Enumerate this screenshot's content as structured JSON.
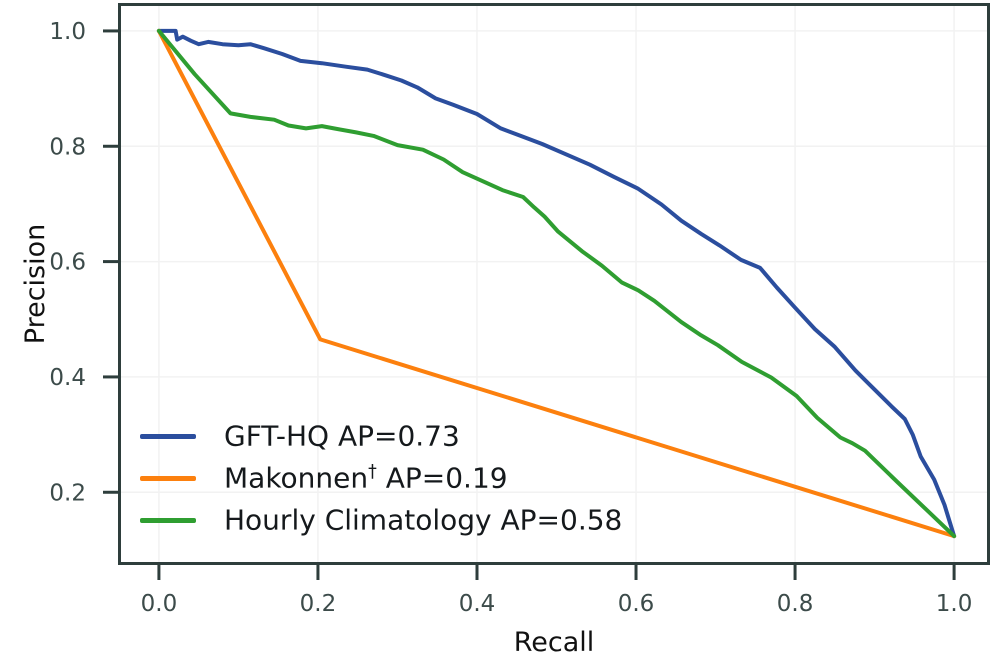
{
  "chart_data": {
    "type": "line",
    "title": "",
    "xlabel": "Recall",
    "ylabel": "Precision",
    "xlim": [
      -0.0502,
      1.0439
    ],
    "ylim": [
      0.0756,
      1.0467
    ],
    "x_ticks": [
      "0.0",
      "0.2",
      "0.4",
      "0.6",
      "0.8",
      "1.0"
    ],
    "y_ticks": [
      "0.2",
      "0.4",
      "0.6",
      "0.8",
      "1.0"
    ],
    "grid": true,
    "legend_position": "lower-left",
    "axis_color": "#2e3e3c",
    "tick_label_color": "#3c4b4a",
    "grid_color": "#f2f2f2",
    "axis_title_color": "#111111",
    "series": [
      {
        "name": "GFT-HQ",
        "ap": 0.73,
        "legend_main": "GFT-HQ",
        "legend_sup": "",
        "legend_rest": " AP=0.73",
        "full_label": "GFT-HQ AP=0.73",
        "color": "#2b4e9e",
        "points": [
          [
            0.0,
            1.0
          ],
          [
            0.021,
            1.0
          ],
          [
            0.023,
            0.985
          ],
          [
            0.03,
            0.99
          ],
          [
            0.04,
            0.983
          ],
          [
            0.05,
            0.977
          ],
          [
            0.062,
            0.981
          ],
          [
            0.08,
            0.977
          ],
          [
            0.1,
            0.975
          ],
          [
            0.115,
            0.977
          ],
          [
            0.132,
            0.97
          ],
          [
            0.155,
            0.96
          ],
          [
            0.178,
            0.948
          ],
          [
            0.205,
            0.944
          ],
          [
            0.235,
            0.938
          ],
          [
            0.262,
            0.933
          ],
          [
            0.285,
            0.923
          ],
          [
            0.305,
            0.914
          ],
          [
            0.325,
            0.902
          ],
          [
            0.348,
            0.883
          ],
          [
            0.37,
            0.872
          ],
          [
            0.4,
            0.856
          ],
          [
            0.43,
            0.831
          ],
          [
            0.455,
            0.818
          ],
          [
            0.482,
            0.804
          ],
          [
            0.512,
            0.786
          ],
          [
            0.542,
            0.768
          ],
          [
            0.572,
            0.747
          ],
          [
            0.602,
            0.727
          ],
          [
            0.632,
            0.699
          ],
          [
            0.657,
            0.671
          ],
          [
            0.682,
            0.648
          ],
          [
            0.705,
            0.628
          ],
          [
            0.732,
            0.603
          ],
          [
            0.756,
            0.589
          ],
          [
            0.777,
            0.555
          ],
          [
            0.8,
            0.52
          ],
          [
            0.825,
            0.483
          ],
          [
            0.85,
            0.452
          ],
          [
            0.876,
            0.411
          ],
          [
            0.9,
            0.378
          ],
          [
            0.922,
            0.348
          ],
          [
            0.938,
            0.327
          ],
          [
            0.948,
            0.3
          ],
          [
            0.958,
            0.262
          ],
          [
            0.975,
            0.222
          ],
          [
            0.988,
            0.178
          ],
          [
            0.994,
            0.151
          ],
          [
            1.0,
            0.124
          ]
        ]
      },
      {
        "name": "Makonnen",
        "ap": 0.19,
        "legend_main": "Makonnen",
        "legend_sup": "†",
        "legend_rest": " AP=0.19",
        "full_label": "Makonnen† AP=0.19",
        "color": "#fc800e",
        "points": [
          [
            0.0,
            1.0
          ],
          [
            0.203,
            0.465
          ],
          [
            1.0,
            0.124
          ]
        ]
      },
      {
        "name": "Hourly Climatology",
        "ap": 0.58,
        "legend_main": "Hourly Climatology",
        "legend_sup": "",
        "legend_rest": " AP=0.58",
        "full_label": "Hourly Climatology AP=0.58",
        "color": "#2f9e31",
        "points": [
          [
            0.0,
            1.0
          ],
          [
            0.045,
            0.925
          ],
          [
            0.09,
            0.857
          ],
          [
            0.115,
            0.851
          ],
          [
            0.145,
            0.846
          ],
          [
            0.163,
            0.836
          ],
          [
            0.185,
            0.831
          ],
          [
            0.205,
            0.835
          ],
          [
            0.22,
            0.831
          ],
          [
            0.248,
            0.824
          ],
          [
            0.27,
            0.818
          ],
          [
            0.3,
            0.802
          ],
          [
            0.332,
            0.794
          ],
          [
            0.358,
            0.777
          ],
          [
            0.382,
            0.755
          ],
          [
            0.403,
            0.742
          ],
          [
            0.432,
            0.724
          ],
          [
            0.458,
            0.712
          ],
          [
            0.472,
            0.694
          ],
          [
            0.485,
            0.678
          ],
          [
            0.502,
            0.652
          ],
          [
            0.532,
            0.618
          ],
          [
            0.557,
            0.593
          ],
          [
            0.582,
            0.564
          ],
          [
            0.603,
            0.55
          ],
          [
            0.623,
            0.532
          ],
          [
            0.657,
            0.495
          ],
          [
            0.682,
            0.472
          ],
          [
            0.703,
            0.455
          ],
          [
            0.733,
            0.426
          ],
          [
            0.77,
            0.399
          ],
          [
            0.802,
            0.367
          ],
          [
            0.828,
            0.329
          ],
          [
            0.857,
            0.295
          ],
          [
            0.872,
            0.285
          ],
          [
            0.888,
            0.272
          ],
          [
            0.93,
            0.216
          ],
          [
            0.965,
            0.17
          ],
          [
            1.0,
            0.124
          ]
        ]
      }
    ]
  }
}
